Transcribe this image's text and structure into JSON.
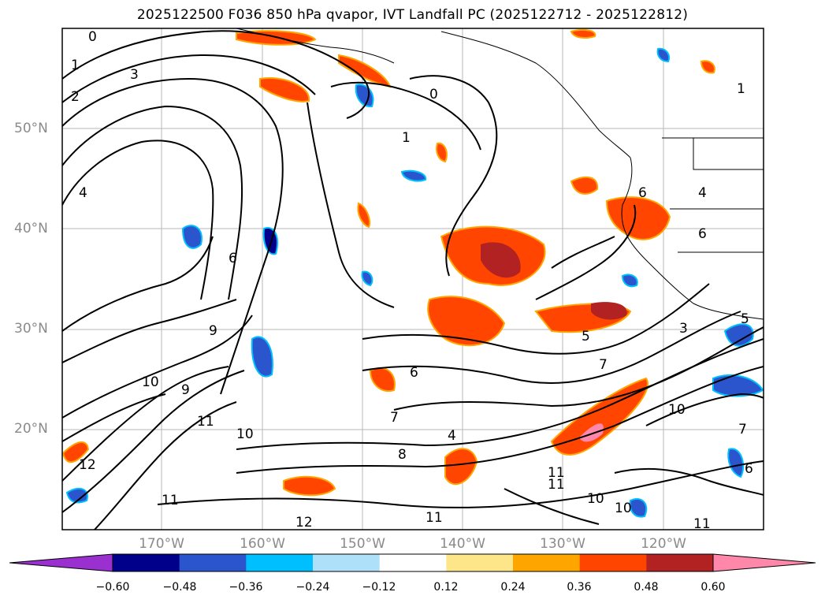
{
  "title": "2025122500 F036 850 hPa qvapor, IVT Landfall PC (2025122712 - 2025122812)",
  "map": {
    "lat_labels": [
      "50°N",
      "40°N",
      "30°N",
      "20°N"
    ],
    "lon_labels": [
      "170°W",
      "160°W",
      "150°W",
      "140°W",
      "130°W",
      "120°W"
    ],
    "contour_labels": [
      "0",
      "1",
      "3",
      "2",
      "4",
      "6",
      "9",
      "10",
      "9",
      "12",
      "11",
      "10",
      "11",
      "12",
      "11",
      "10",
      "11",
      "6",
      "7",
      "4",
      "8",
      "5",
      "6",
      "3",
      "7",
      "5",
      "6",
      "4",
      "10",
      "7",
      "6",
      "1",
      "0",
      "1",
      "11",
      "10",
      "11"
    ]
  },
  "colorbar": {
    "ticks": [
      "−0.60",
      "−0.48",
      "−0.36",
      "−0.24",
      "−0.12",
      "0.12",
      "0.24",
      "0.36",
      "0.48",
      "0.60"
    ],
    "colors": [
      "#9b30d0",
      "#00008b",
      "#2b55cc",
      "#00bfff",
      "#aee0fa",
      "#ffffff",
      "#fde68a",
      "#ffa500",
      "#ff4500",
      "#b22222",
      "#ff88aa"
    ],
    "levels": [
      -0.6,
      -0.48,
      -0.36,
      -0.24,
      -0.12,
      0.12,
      0.24,
      0.36,
      0.48,
      0.6
    ]
  }
}
